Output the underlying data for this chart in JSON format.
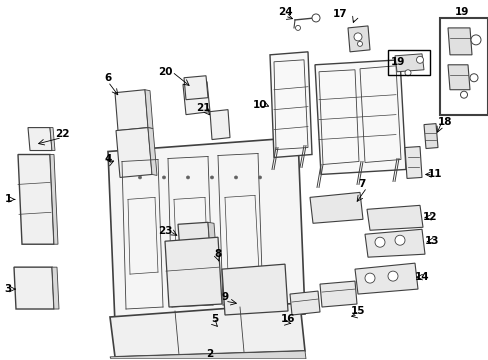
{
  "bg": "#ffffff",
  "lc": "#404040",
  "tc": "#000000",
  "fw": 4.89,
  "fh": 3.6,
  "dpi": 100
}
